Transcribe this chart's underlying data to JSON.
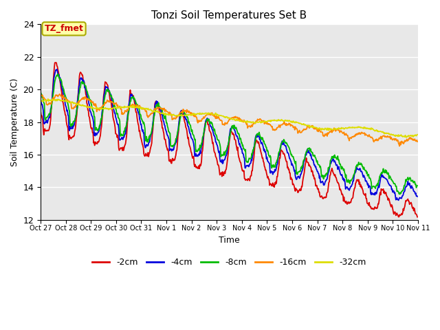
{
  "title": "Tonzi Soil Temperatures Set B",
  "xlabel": "Time",
  "ylabel": "Soil Temperature (C)",
  "ylim": [
    12,
    24
  ],
  "yticks": [
    12,
    14,
    16,
    18,
    20,
    22,
    24
  ],
  "xtick_labels": [
    "Oct 27",
    "Oct 28",
    "Oct 29",
    "Oct 30",
    "Oct 31",
    "Nov 1",
    "Nov 2",
    "Nov 3",
    "Nov 4",
    "Nov 5",
    "Nov 6",
    "Nov 7",
    "Nov 8",
    "Nov 9",
    "Nov 10",
    "Nov 11"
  ],
  "legend_label": "TZ_fmet",
  "series_labels": [
    "-2cm",
    "-4cm",
    "-8cm",
    "-16cm",
    "-32cm"
  ],
  "series_colors": [
    "#dd0000",
    "#0000dd",
    "#00bb00",
    "#ff8800",
    "#dddd00"
  ],
  "background_color": "#e8e8e8",
  "fig_background": "#ffffff",
  "annotation_box_facecolor": "#ffffaa",
  "annotation_text_color": "#cc0000",
  "annotation_edge_color": "#aaaa00"
}
